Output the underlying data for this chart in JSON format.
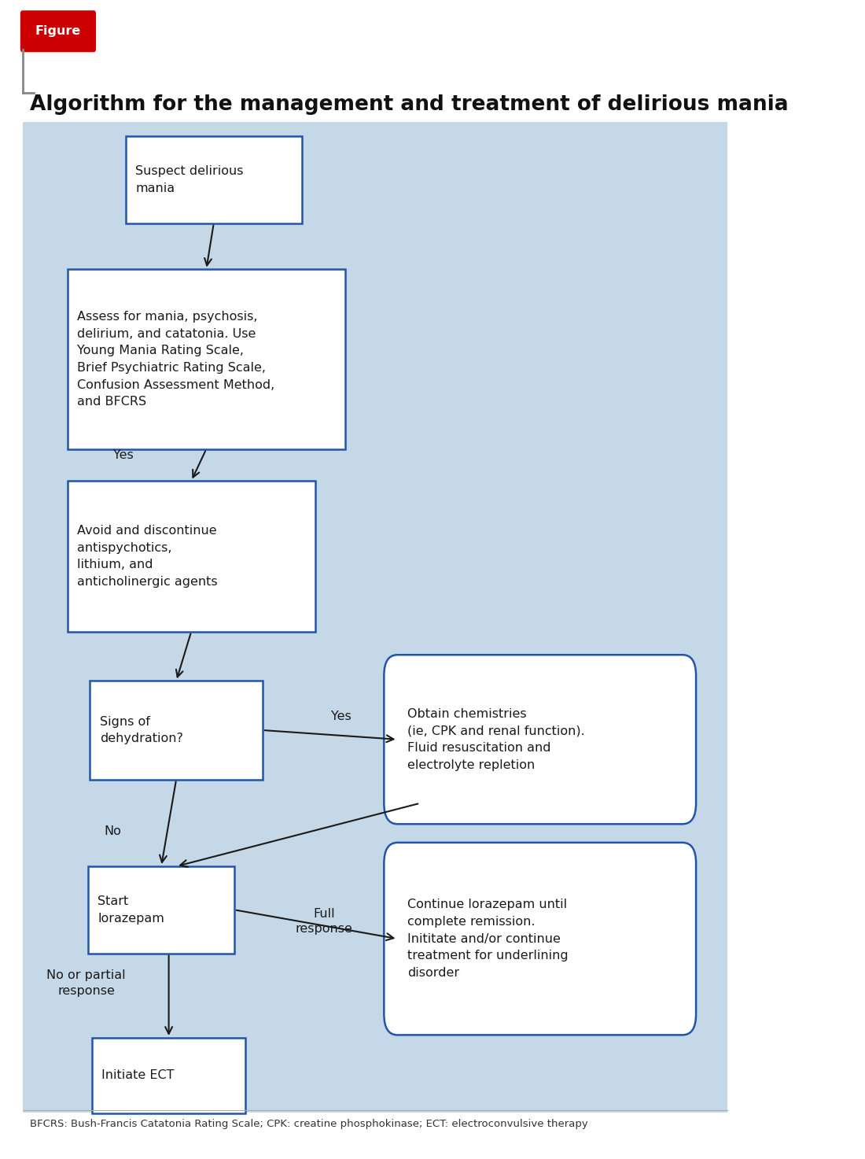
{
  "title": "Algorithm for the management and treatment of delirious mania",
  "figure_label": "Figure",
  "bg_color": "#c5d8e8",
  "white": "#ffffff",
  "box_border_color": "#2255aa",
  "text_color": "#1a1a1a",
  "arrow_color": "#1a1a1a",
  "footer_text": "BFCRS: Bush-Francis Catatonia Rating Scale; CPK: creatine phosphokinase; ECT: electroconvulsive therapy",
  "suspect_text": "Suspect delirious\nmania",
  "assess_text": "Assess for mania, psychosis,\ndelirium, and catatonia. Use\nYoung Mania Rating Scale,\nBrief Psychiatric Rating Scale,\nConfusion Assessment Method,\nand BFCRS",
  "avoid_text": "Avoid and discontinue\nantispychotics,\nlithium, and\nanticholinergic agents",
  "signs_text": "Signs of\ndehydration?",
  "obtain_text": "Obtain chemistries\n(ie, CPK and renal function).\nFluid resuscitation and\nelectrolyte repletion",
  "lorazepam_text": "Start\nlorazepam",
  "continue_text": "Continue lorazepam until\ncomplete remission.\nInititate and/or continue\ntreatment for underlining\ndisorder",
  "ect_text": "Initiate ECT"
}
